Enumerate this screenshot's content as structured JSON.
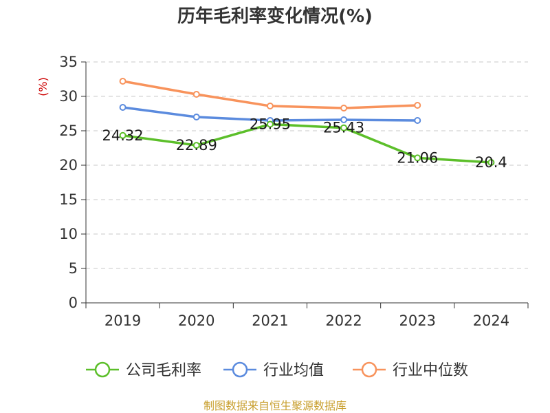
{
  "chart_data": {
    "type": "line",
    "title": "历年毛利率变化情况(%)",
    "xlabel": "",
    "ylabel": "(%)",
    "categories": [
      "2019",
      "2020",
      "2021",
      "2022",
      "2023",
      "2024"
    ],
    "ylim": [
      0,
      35
    ],
    "yticks": [
      0,
      5,
      10,
      15,
      20,
      25,
      30,
      35
    ],
    "grid": true,
    "legend": "bottom",
    "series": [
      {
        "name": "公司毛利率",
        "color": "#5cbf2a",
        "values": [
          24.32,
          22.89,
          25.95,
          25.43,
          21.06,
          20.4
        ],
        "labels": [
          "24.32",
          "22.89",
          "25.95",
          "25.43",
          "21.06",
          "20.4"
        ],
        "show_labels": true
      },
      {
        "name": "行业均值",
        "color": "#5b8bde",
        "values": [
          28.4,
          27.0,
          26.5,
          26.6,
          26.5,
          null
        ],
        "show_labels": false
      },
      {
        "name": "行业中位数",
        "color": "#f8935c",
        "values": [
          32.2,
          30.3,
          28.6,
          28.3,
          28.7,
          null
        ],
        "show_labels": false
      }
    ]
  },
  "footer": {
    "text": "制图数据来自恒生聚源数据库",
    "color": "#c9a030"
  }
}
